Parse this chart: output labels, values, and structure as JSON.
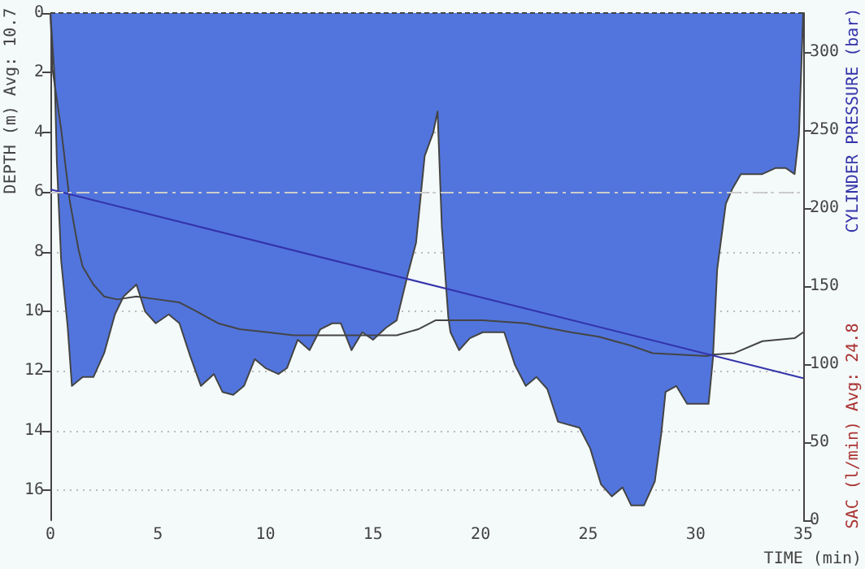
{
  "chart_data": {
    "type": "area",
    "ylabel": "DEPTH (m) Avg: 10.7",
    "y2label": "CYLINDER PRESSURE (bar)",
    "xlabel": "TIME (min)",
    "annotations": [
      "SAC (l/min) Avg: 24.8"
    ],
    "xlim": [
      0,
      35
    ],
    "xticks": [
      0,
      5,
      10,
      15,
      20,
      25,
      30,
      35
    ],
    "ylim": [
      17,
      0
    ],
    "yticks": [
      0,
      2,
      4,
      6,
      8,
      10,
      12,
      14,
      16
    ],
    "y2lim": [
      0,
      325
    ],
    "y2ticks": [
      0,
      50,
      100,
      150,
      200,
      250,
      300
    ],
    "grid": "y",
    "ref_lines": [
      {
        "axis": "y",
        "value": 6,
        "color": "#cccccc",
        "line_style": "dashed"
      }
    ],
    "series": [
      {
        "type": "area",
        "color": "#5275dd",
        "x": [
          0,
          0.2,
          0.3,
          0.5,
          0.8,
          1.0,
          1.5,
          2.0,
          2.5,
          3.0,
          3.4,
          4.0,
          4.4,
          4.9,
          5.5,
          6.0,
          6.5,
          7.0,
          7.6,
          8.0,
          8.5,
          9.0,
          9.5,
          10.0,
          10.6,
          11.0,
          11.5,
          12.05,
          12.55,
          13.1,
          13.5,
          14.0,
          14.5,
          15.0,
          15.6,
          16.1,
          16.6,
          17.0,
          17.4,
          17.8,
          18.0,
          18.2,
          18.5,
          18.6,
          19.0,
          19.5,
          20.1,
          21.1,
          21.6,
          22.1,
          22.6,
          23.1,
          23.6,
          24.6,
          25.1,
          25.6,
          26.1,
          26.6,
          27.0,
          27.6,
          28.1,
          28.4,
          28.6,
          29.1,
          29.6,
          30.6,
          30.8,
          31.0,
          31.4,
          31.7,
          32.1,
          33.1,
          33.7,
          34.2,
          34.6,
          34.8,
          35.0
        ],
        "values": [
          0,
          2.2,
          5,
          8.3,
          10.5,
          12.5,
          12.2,
          12.2,
          11.4,
          10.1,
          9.5,
          9.1,
          10.0,
          10.4,
          10.1,
          10.4,
          11.5,
          12.5,
          12.1,
          12.7,
          12.8,
          12.5,
          11.6,
          11.9,
          12.1,
          11.9,
          10.95,
          11.3,
          10.6,
          10.4,
          10.4,
          11.3,
          10.7,
          10.95,
          10.55,
          10.3,
          8.8,
          7.7,
          4.8,
          4.0,
          3.3,
          7.2,
          10.2,
          10.7,
          11.3,
          10.9,
          10.7,
          10.7,
          11.8,
          12.5,
          12.2,
          12.6,
          13.7,
          13.9,
          14.6,
          15.8,
          16.2,
          15.9,
          16.5,
          16.5,
          15.7,
          14.1,
          12.7,
          12.5,
          13.1,
          13.1,
          11.6,
          8.6,
          6.4,
          5.9,
          5.4,
          5.4,
          5.2,
          5.2,
          5.4,
          4.1,
          0
        ]
      },
      {
        "type": "line",
        "color": "#444444",
        "x": [
          0,
          0.1,
          0.5,
          0.9,
          1.3,
          1.5,
          2.0,
          2.5,
          3.1,
          4.0,
          5.0,
          6.0,
          6.8,
          7.8,
          8.8,
          10.1,
          11.3,
          16.1,
          17.1,
          17.9,
          20.1,
          22.1,
          23.1,
          24.2,
          25.5,
          27.0,
          28.0,
          30.5,
          30.8,
          31.8,
          33.1,
          34.6,
          35.0
        ],
        "values": [
          0,
          1.9,
          3.9,
          6.3,
          7.9,
          8.5,
          9.1,
          9.5,
          9.6,
          9.5,
          9.6,
          9.7,
          10.0,
          10.4,
          10.6,
          10.7,
          10.8,
          10.8,
          10.6,
          10.3,
          10.3,
          10.4,
          10.55,
          10.7,
          10.85,
          11.15,
          11.4,
          11.5,
          11.45,
          11.4,
          11.0,
          10.9,
          10.7
        ]
      },
      {
        "type": "line",
        "axis": "y2",
        "color": "#3333aa",
        "x": [
          0,
          35
        ],
        "values": [
          212,
          91
        ]
      }
    ]
  }
}
